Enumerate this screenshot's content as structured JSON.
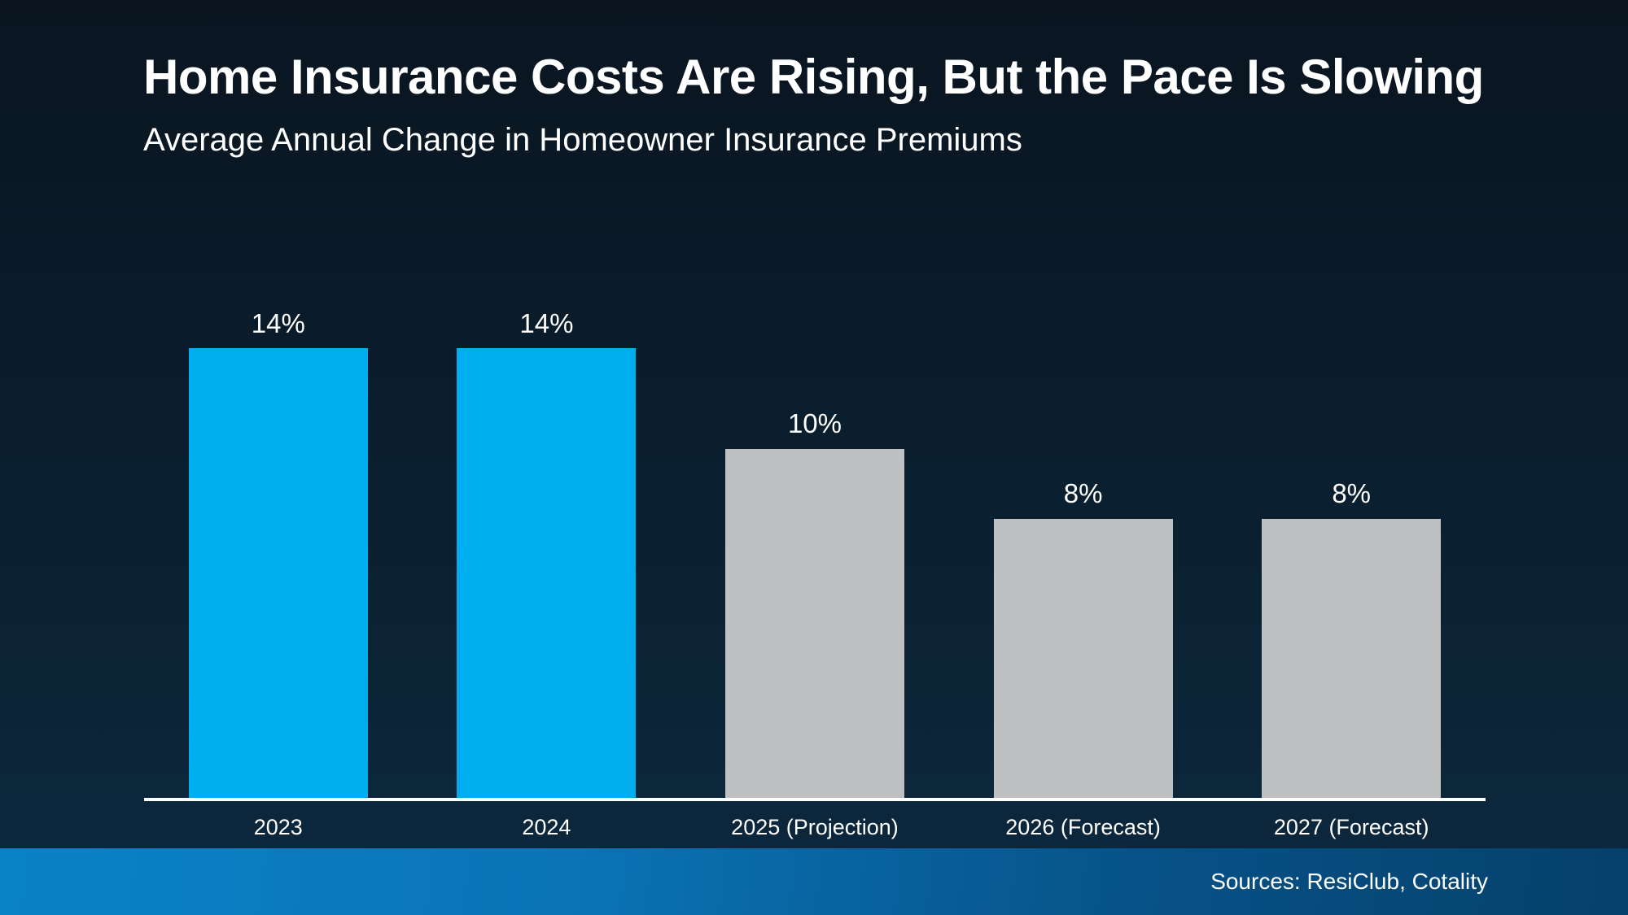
{
  "header": {
    "title": "Home Insurance Costs Are Rising, But the Pace Is Slowing",
    "subtitle": "Average Annual Change in Homeowner Insurance Premiums"
  },
  "chart_data": {
    "type": "bar",
    "title": "Home Insurance Costs Are Rising, But the Pace Is Slowing",
    "subtitle": "Average Annual Change in Homeowner Insurance Premiums",
    "categories": [
      "2023",
      "2024",
      "2025 (Projection)",
      "2026 (Forecast)",
      "2027 (Forecast)"
    ],
    "values": [
      14,
      14,
      10,
      8,
      8
    ],
    "value_labels": [
      "14%",
      "14%",
      "10%",
      "8%",
      "8%"
    ],
    "bar_colors": [
      "#00AEEF",
      "#00AEEF",
      "#BEC0C2",
      "#BEC0C2",
      "#BEC0C2"
    ],
    "ylim": [
      0,
      14
    ],
    "grid": false,
    "legend": "none",
    "xlabel": "",
    "ylabel": ""
  },
  "footer": {
    "sources": "Sources: ResiClub, Cotality"
  },
  "colors": {
    "background_top": "#0A1520",
    "background_bottom": "#0C2840",
    "bar_highlight": "#00AEEF",
    "bar_muted": "#BEC0C2",
    "axis_line": "#FFFFFF",
    "text": "#FFFFFF",
    "footer_gradient_left": "#0A82C8",
    "footer_gradient_right": "#05406A"
  }
}
